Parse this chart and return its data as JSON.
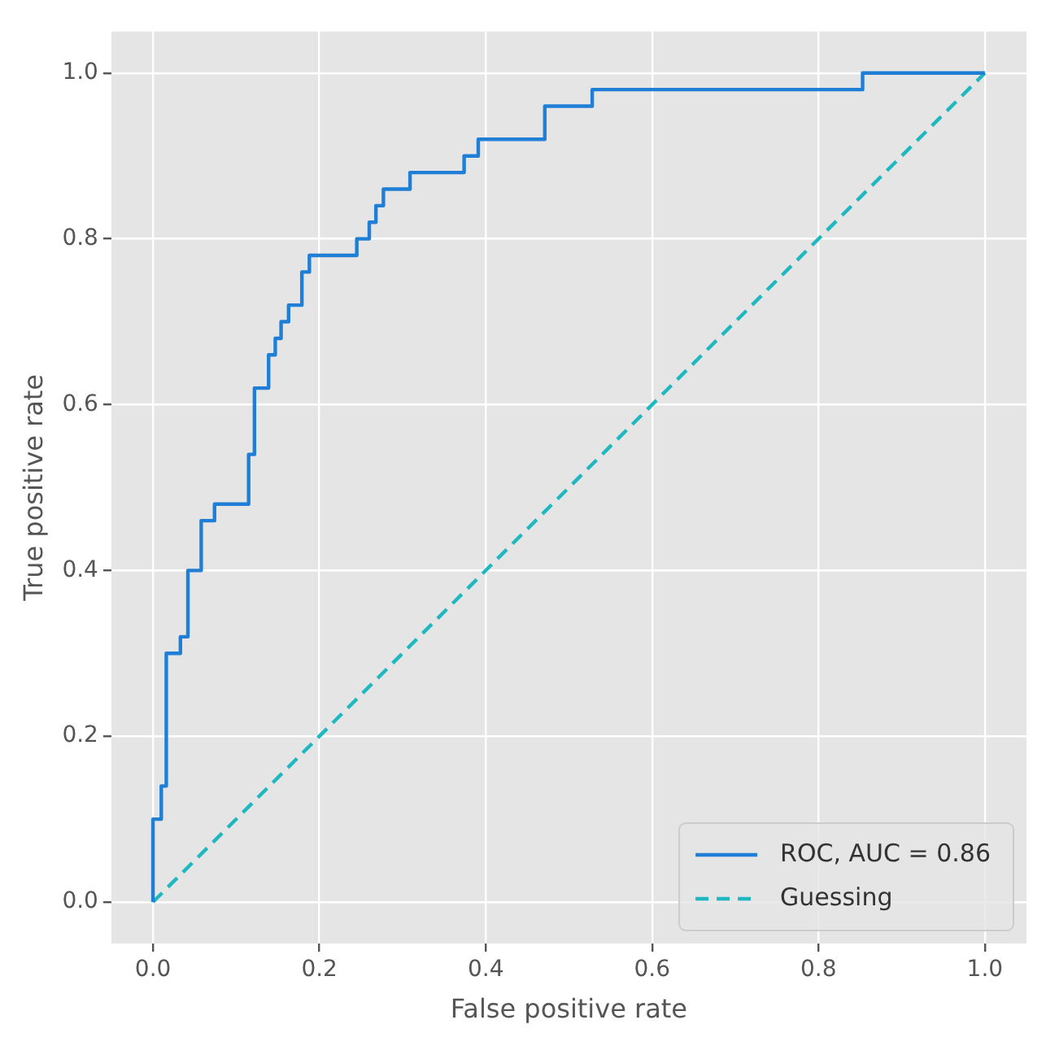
{
  "chart_data": {
    "type": "line",
    "xlabel": "False positive rate",
    "ylabel": "True positive rate",
    "xlim": [
      -0.05,
      1.05
    ],
    "ylim": [
      -0.05,
      1.05
    ],
    "xticks": [
      {
        "value": 0,
        "label": "0.0"
      },
      {
        "value": 0.2,
        "label": "0.2"
      },
      {
        "value": 0.4,
        "label": "0.4"
      },
      {
        "value": 0.6,
        "label": "0.6"
      },
      {
        "value": 0.8,
        "label": "0.8"
      },
      {
        "value": 1,
        "label": "1.0"
      }
    ],
    "yticks": [
      {
        "value": 0,
        "label": "0.0"
      },
      {
        "value": 0.2,
        "label": "0.2"
      },
      {
        "value": 0.4,
        "label": "0.4"
      },
      {
        "value": 0.6,
        "label": "0.6"
      },
      {
        "value": 0.8,
        "label": "0.8"
      },
      {
        "value": 1,
        "label": "1.0"
      }
    ],
    "grid": true,
    "legend": "bottom right",
    "series": [
      {
        "name": "ROC, AUC = 0.86",
        "type": "step",
        "color": "#1f7fd6",
        "line_style": "solid",
        "x": [
          0,
          0,
          0.01,
          0.016,
          0.033,
          0.042,
          0.058,
          0.074,
          0.115,
          0.122,
          0.139,
          0.147,
          0.154,
          0.163,
          0.179,
          0.188,
          0.245,
          0.26,
          0.268,
          0.277,
          0.309,
          0.374,
          0.391,
          0.471,
          0.528,
          0.853,
          1.0
        ],
        "values": [
          0,
          0.1,
          0.14,
          0.3,
          0.32,
          0.4,
          0.46,
          0.48,
          0.54,
          0.62,
          0.66,
          0.68,
          0.7,
          0.72,
          0.76,
          0.78,
          0.8,
          0.82,
          0.84,
          0.86,
          0.88,
          0.9,
          0.92,
          0.96,
          0.98,
          1.0,
          1.0
        ]
      },
      {
        "name": "Guessing",
        "type": "line",
        "color": "#1fb8c0",
        "line_style": "dashed",
        "x": [
          0,
          1
        ],
        "values": [
          0,
          1
        ]
      }
    ]
  }
}
